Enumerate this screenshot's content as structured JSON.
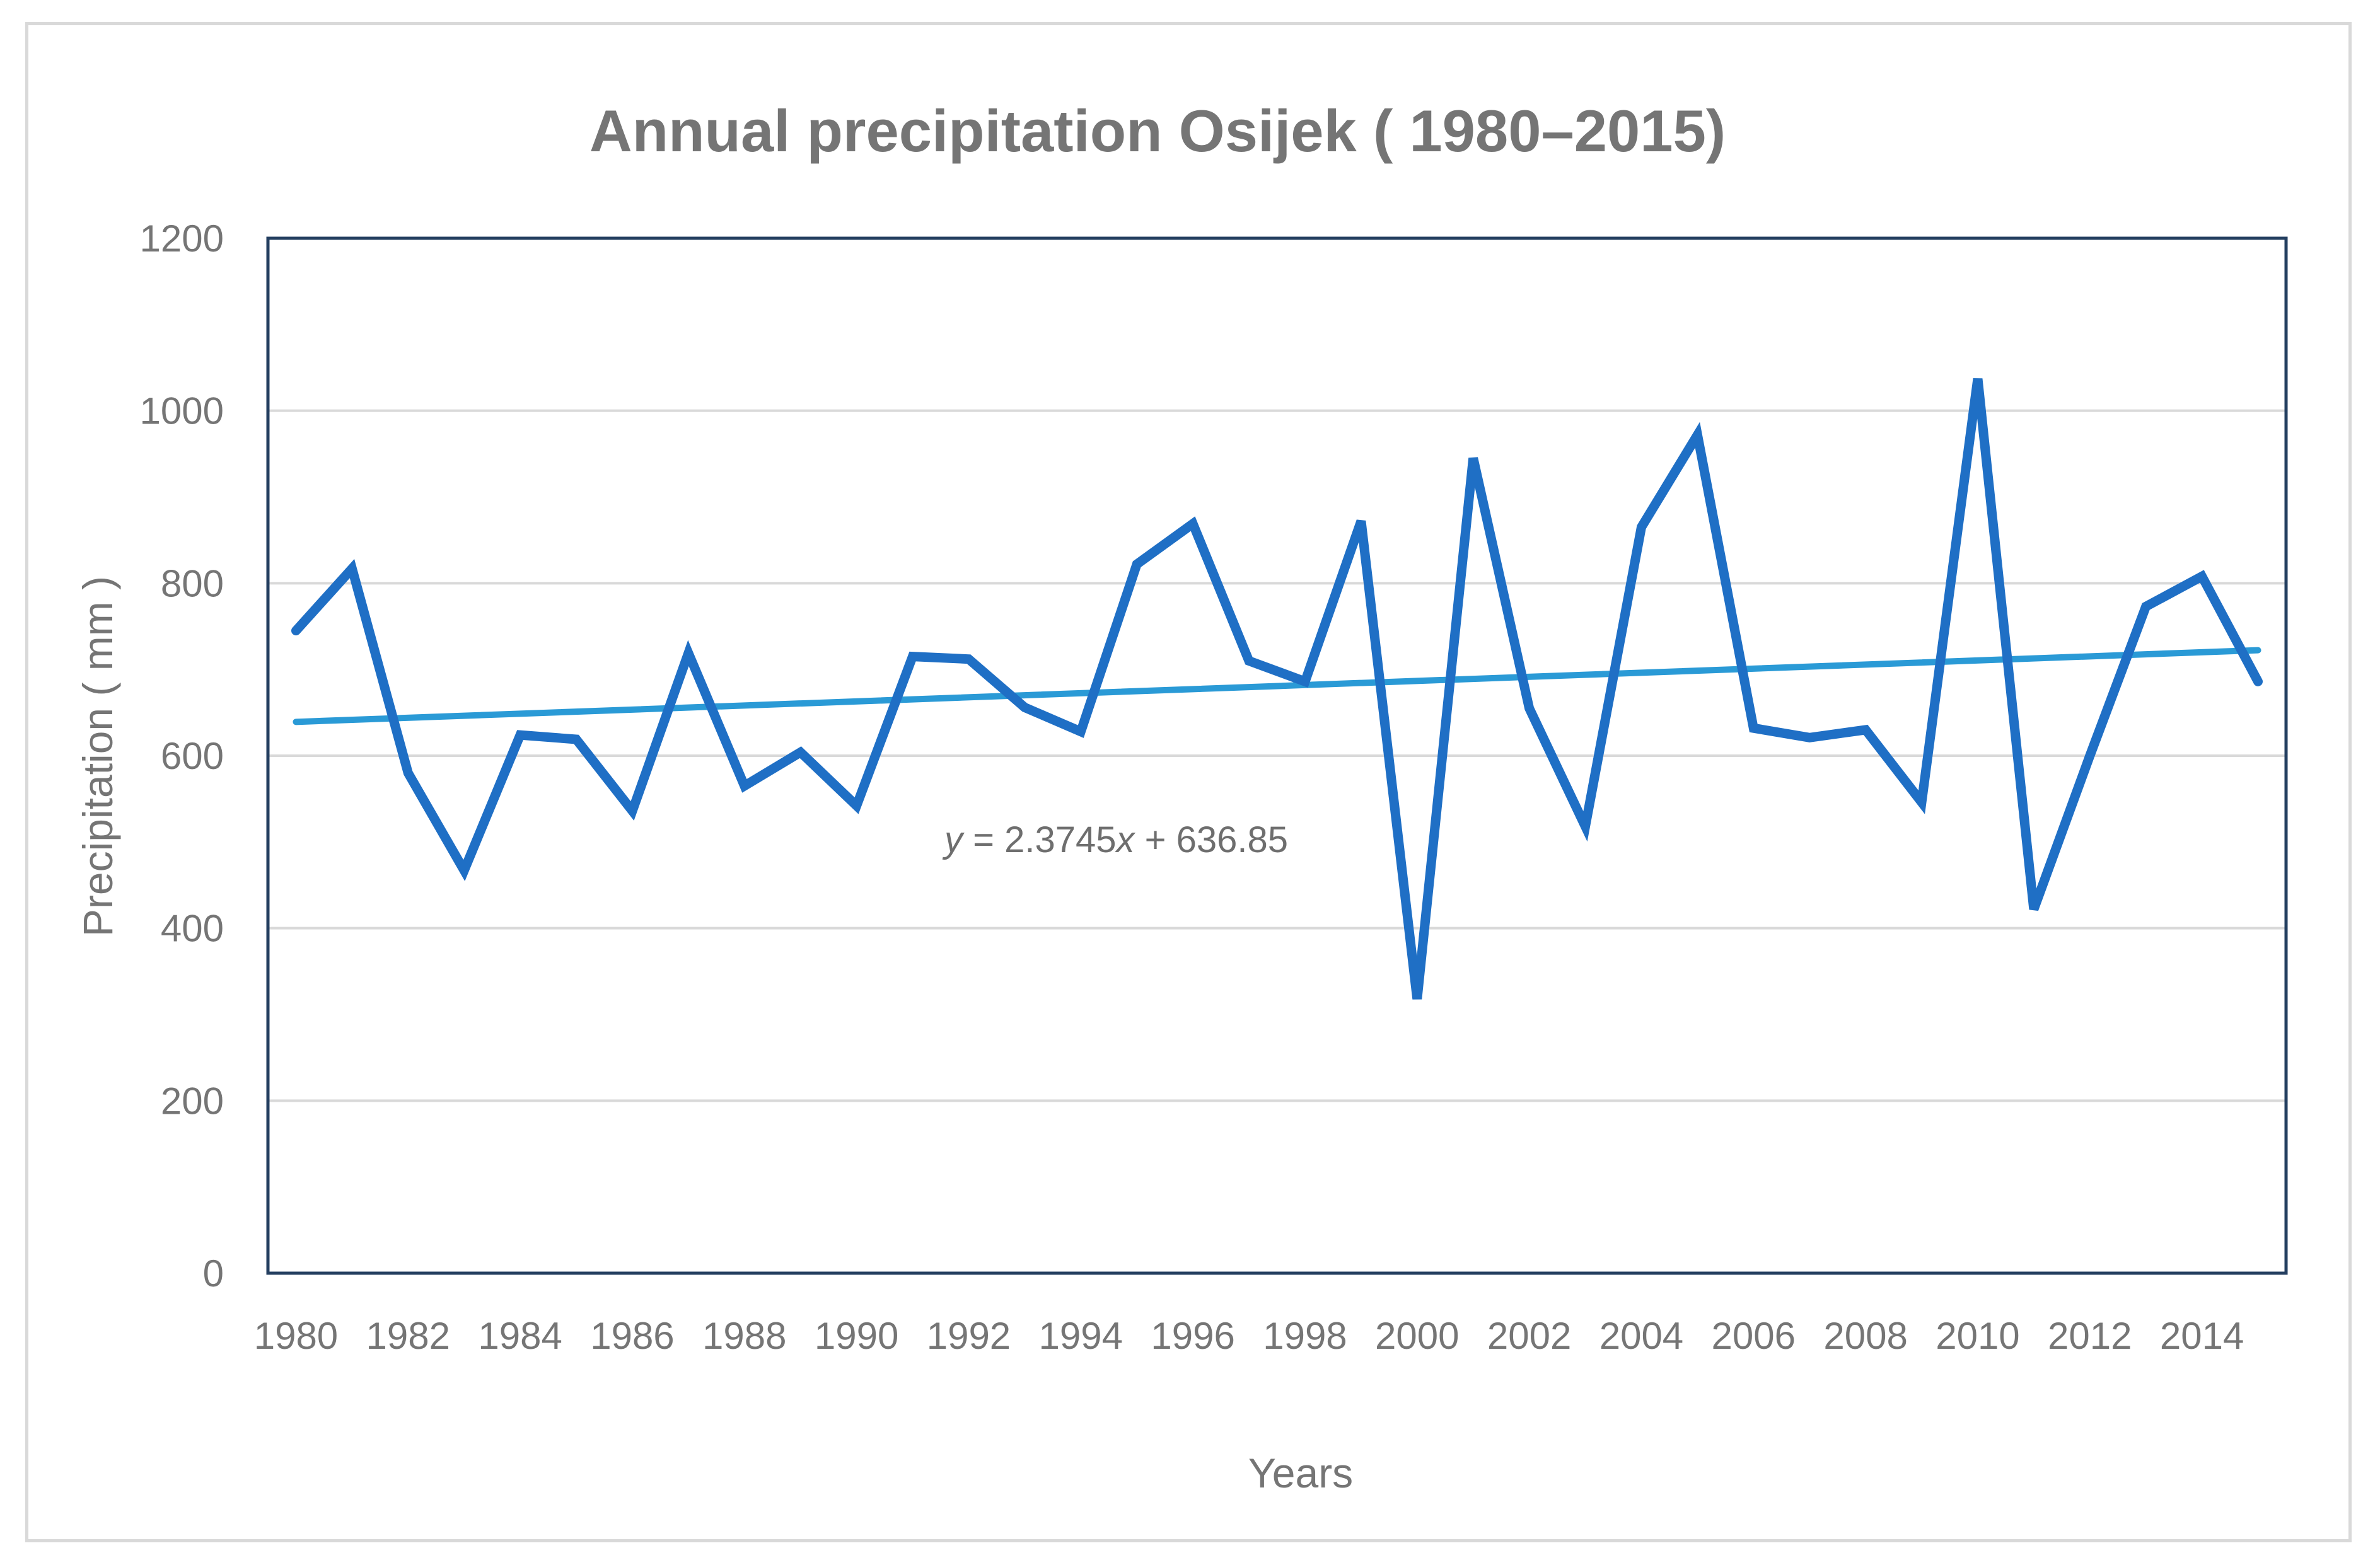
{
  "chart_data": {
    "type": "line",
    "title": "Annual precipitation Osijek ( 1980–2015)",
    "xlabel": "Years",
    "ylabel": "Precipitation ( mm )",
    "ylim": [
      0,
      1200
    ],
    "yticks": [
      "0",
      "200",
      "400",
      "600",
      "800",
      "1000",
      "1200"
    ],
    "xtick_labels": [
      "1980",
      "1982",
      "1984",
      "1986",
      "1988",
      "1990",
      "1992",
      "1994",
      "1996",
      "1998",
      "2000",
      "2002",
      "2004",
      "2006",
      "2008",
      "2010",
      "2012",
      "2014"
    ],
    "grid": true,
    "x": [
      1980,
      1981,
      1982,
      1983,
      1984,
      1985,
      1986,
      1987,
      1988,
      1989,
      1990,
      1991,
      1992,
      1993,
      1994,
      1995,
      1996,
      1997,
      1998,
      1999,
      2000,
      2001,
      2002,
      2003,
      2004,
      2005,
      2006,
      2007,
      2008,
      2009,
      2010,
      2011,
      2012,
      2013,
      2014,
      2015
    ],
    "series": [
      {
        "name": "Annual precipitation",
        "color": "#1f6fc5",
        "values": [
          745,
          817,
          580,
          467,
          624,
          619,
          536,
          719,
          565,
          604,
          542,
          715,
          712,
          656,
          628,
          822,
          869,
          710,
          686,
          872,
          318,
          945,
          655,
          518,
          865,
          972,
          632,
          621,
          630,
          546,
          1037,
          422,
          600,
          773,
          808,
          686
        ]
      },
      {
        "name": "Linear trend",
        "color": "#2a9ad6",
        "slope": 2.3745,
        "intercept": 636.85
      }
    ],
    "annotations": [
      {
        "text_y": "y",
        "text_rest": " = 2.3745",
        "text_x": "x",
        "text_tail": " + 636.85"
      }
    ]
  }
}
